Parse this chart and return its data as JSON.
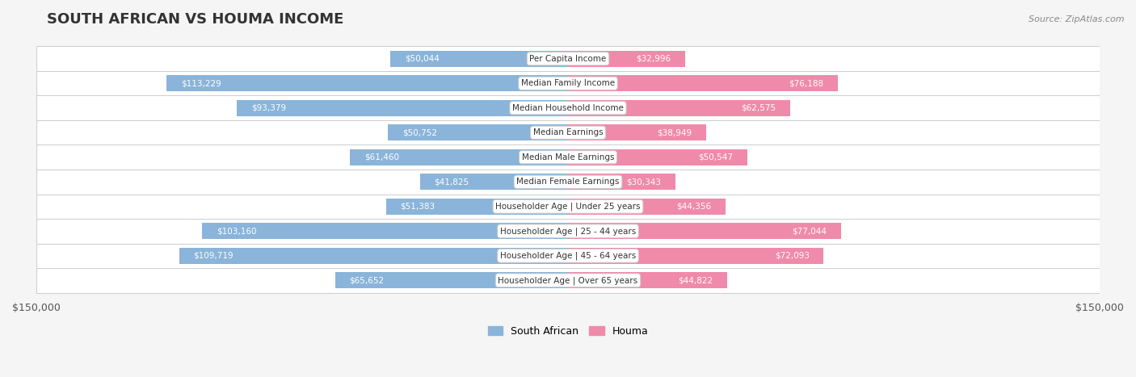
{
  "title": "SOUTH AFRICAN VS HOUMA INCOME",
  "source": "Source: ZipAtlas.com",
  "categories": [
    "Per Capita Income",
    "Median Family Income",
    "Median Household Income",
    "Median Earnings",
    "Median Male Earnings",
    "Median Female Earnings",
    "Householder Age | Under 25 years",
    "Householder Age | 25 - 44 years",
    "Householder Age | 45 - 64 years",
    "Householder Age | Over 65 years"
  ],
  "south_african_values": [
    50044,
    113229,
    93379,
    50752,
    61460,
    41825,
    51383,
    103160,
    109719,
    65652
  ],
  "houma_values": [
    32996,
    76188,
    62575,
    38949,
    50547,
    30343,
    44356,
    77044,
    72093,
    44822
  ],
  "south_african_labels": [
    "$50,044",
    "$113,229",
    "$93,379",
    "$50,752",
    "$61,460",
    "$41,825",
    "$51,383",
    "$103,160",
    "$109,719",
    "$65,652"
  ],
  "houma_labels": [
    "$32,996",
    "$76,188",
    "$62,575",
    "$38,949",
    "$50,547",
    "$30,343",
    "$44,356",
    "$77,044",
    "$72,093",
    "$44,822"
  ],
  "blue_color": "#8ab4d9",
  "pink_color": "#f08aaa",
  "blue_dark": "#6699cc",
  "pink_dark": "#e06080",
  "axis_limit": 150000,
  "background_color": "#f5f5f5",
  "bar_bg_color": "#e8e8e8",
  "bar_height": 0.65,
  "legend_blue_label": "South African",
  "legend_pink_label": "Houma"
}
